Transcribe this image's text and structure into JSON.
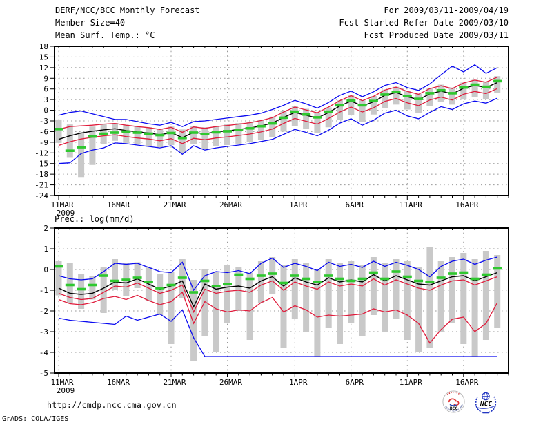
{
  "header": {
    "left": [
      "DERF/NCC/BCC Monthly Forecast",
      "Member Size=40"
    ],
    "right": [
      "For 2009/03/11-2009/04/19",
      "Fcst Started Refer Date 2009/03/10",
      "Fcst Produced Date 2009/03/11"
    ]
  },
  "footer": {
    "url": "http://cmdp.ncc.cma.gov.cn",
    "grads_credit": "GrADS: COLA/IGES",
    "logos": {
      "bcc": "BCC",
      "bcc_ring_text": "BEIJING CLIMATE CENTER",
      "ncc": "NCC"
    }
  },
  "colors": {
    "extreme_lines": "#0a0af0",
    "band_lines": "#e01c3c",
    "mean_line": "#000000",
    "obs_marks": "#2fc82f",
    "spread_bars": "#c9c9c9",
    "grid": "#999999",
    "axis": "#000000"
  },
  "chart_data": [
    {
      "id": "temp",
      "type": "line",
      "title": "Mean Surf. Temp.: °C",
      "n_days": 40,
      "x_tick_labels": [
        "11MAR",
        "16MAR",
        "21MAR",
        "26MAR",
        "1APR",
        "6APR",
        "11APR",
        "16APR"
      ],
      "x_tick_days": [
        0,
        5,
        10,
        15,
        21,
        26,
        31,
        36
      ],
      "x_sub_label": "2009",
      "y_tick_labels": [
        "18",
        "15",
        "12",
        "9",
        "6",
        "3",
        "0",
        "-3",
        "-6",
        "-9",
        "-12",
        "-15",
        "-18",
        "-21",
        "-24"
      ],
      "ylim": [
        -24,
        18
      ],
      "series": [
        {
          "name": "max",
          "color_key": "extreme_lines",
          "values": [
            -1.4,
            -0.6,
            -0.2,
            -1.0,
            -1.8,
            -2.6,
            -2.6,
            -3.2,
            -3.8,
            -4.2,
            -3.4,
            -4.6,
            -3.2,
            -3.0,
            -2.6,
            -2.2,
            -1.8,
            -1.4,
            -0.8,
            0.2,
            1.4,
            2.8,
            1.8,
            0.6,
            2.2,
            4.2,
            5.4,
            3.8,
            5.2,
            7.0,
            7.8,
            6.4,
            5.6,
            7.4,
            10.0,
            12.4,
            10.8,
            12.8,
            10.4,
            12.0
          ]
        },
        {
          "name": "upper",
          "color_key": "band_lines",
          "values": [
            -5.4,
            -4.6,
            -4.4,
            -4.2,
            -3.9,
            -3.7,
            -4.2,
            -4.6,
            -4.9,
            -5.4,
            -4.8,
            -6.2,
            -4.7,
            -5.1,
            -4.6,
            -4.3,
            -3.9,
            -3.5,
            -2.9,
            -2.1,
            -0.5,
            0.9,
            0.1,
            -0.7,
            0.9,
            2.7,
            4.1,
            2.7,
            3.9,
            5.7,
            6.5,
            5.3,
            4.5,
            6.1,
            6.9,
            6.1,
            7.7,
            8.5,
            7.9,
            9.3
          ]
        },
        {
          "name": "mean",
          "color_key": "mean_line",
          "values": [
            -8.2,
            -7.2,
            -6.4,
            -5.9,
            -5.5,
            -5.2,
            -5.7,
            -6.1,
            -6.4,
            -6.9,
            -6.3,
            -7.7,
            -6.2,
            -6.6,
            -6.1,
            -5.8,
            -5.4,
            -5.0,
            -4.4,
            -3.6,
            -2.0,
            -0.6,
            -1.4,
            -2.2,
            -0.6,
            1.2,
            2.6,
            1.2,
            2.4,
            4.2,
            5.0,
            3.8,
            3.0,
            4.6,
            5.4,
            4.6,
            6.2,
            7.0,
            6.4,
            7.8
          ]
        },
        {
          "name": "lower",
          "color_key": "band_lines",
          "values": [
            -9.9,
            -8.9,
            -8.1,
            -7.6,
            -7.2,
            -6.9,
            -7.4,
            -7.8,
            -8.1,
            -8.6,
            -8.0,
            -9.4,
            -7.9,
            -8.3,
            -7.8,
            -7.5,
            -7.1,
            -6.7,
            -6.1,
            -5.3,
            -3.7,
            -2.3,
            -3.1,
            -3.9,
            -2.3,
            -0.5,
            0.9,
            -0.5,
            0.7,
            2.5,
            3.3,
            2.1,
            1.3,
            2.9,
            3.7,
            2.9,
            4.5,
            5.3,
            4.7,
            6.1
          ]
        },
        {
          "name": "min",
          "color_key": "extreme_lines",
          "values": [
            -15.0,
            -14.8,
            -12.2,
            -11.2,
            -10.6,
            -9.2,
            -9.4,
            -9.8,
            -10.2,
            -10.6,
            -10.0,
            -12.4,
            -10.0,
            -11.2,
            -10.6,
            -10.2,
            -9.8,
            -9.4,
            -8.8,
            -8.2,
            -6.8,
            -5.4,
            -6.2,
            -7.2,
            -5.6,
            -3.6,
            -2.4,
            -4.2,
            -2.8,
            -0.8,
            0.0,
            -1.6,
            -2.4,
            -0.6,
            1.0,
            0.2,
            1.8,
            2.6,
            2.0,
            3.4
          ]
        }
      ],
      "obs_marks": [
        -5.3,
        -11.4,
        -10.4,
        -7.4,
        -6.6,
        -6.3,
        -6.0,
        -6.3,
        -6.6,
        -7.0,
        -6.4,
        -7.8,
        -6.3,
        -6.7,
        -6.2,
        -5.9,
        -5.5,
        -5.1,
        -4.5,
        -3.7,
        -2.1,
        -0.4,
        -1.2,
        -2.0,
        -0.4,
        1.4,
        2.8,
        1.4,
        2.6,
        4.4,
        5.2,
        4.0,
        3.2,
        4.8,
        5.6,
        4.8,
        6.4,
        7.2,
        6.6,
        8.2
      ],
      "spread_bar_high": [
        -2.6,
        -4.0,
        -6.2,
        -4.6,
        -4.0,
        -3.6,
        -4.1,
        -4.5,
        -4.8,
        -5.2,
        -4.6,
        -5.4,
        -4.4,
        -4.8,
        -4.4,
        -4.0,
        -3.6,
        -3.2,
        -2.6,
        -1.8,
        -0.2,
        1.2,
        0.4,
        -0.6,
        0.8,
        2.8,
        4.2,
        2.8,
        4.0,
        5.8,
        6.6,
        5.4,
        4.6,
        6.2,
        7.2,
        6.4,
        7.8,
        8.6,
        8.0,
        9.6
      ],
      "spread_bar_low": [
        -9.2,
        -13.2,
        -18.8,
        -15.4,
        -9.6,
        -8.6,
        -9.2,
        -9.6,
        -10.0,
        -10.4,
        -9.8,
        -12.0,
        -9.6,
        -10.8,
        -10.2,
        -9.8,
        -9.4,
        -9.0,
        -8.4,
        -7.6,
        -6.0,
        -4.4,
        -5.2,
        -6.4,
        -4.8,
        -2.8,
        -1.4,
        -3.2,
        -1.2,
        0.6,
        1.6,
        0.2,
        -0.8,
        1.2,
        2.4,
        1.6,
        3.0,
        3.8,
        3.2,
        4.8
      ]
    },
    {
      "id": "prec",
      "type": "line",
      "title": "Prec.: log(mm/d)",
      "n_days": 40,
      "x_tick_labels": [
        "11MAR",
        "16MAR",
        "21MAR",
        "26MAR",
        "1APR",
        "6APR",
        "11APR",
        "16APR"
      ],
      "x_tick_days": [
        0,
        5,
        10,
        15,
        21,
        26,
        31,
        36
      ],
      "x_sub_label": "2009",
      "y_tick_labels": [
        "2",
        "1",
        "0",
        "-1",
        "-2",
        "-3",
        "-4",
        "-5"
      ],
      "ylim": [
        -5,
        2
      ],
      "series": [
        {
          "name": "max",
          "color_key": "extreme_lines",
          "values": [
            -0.3,
            -0.45,
            -0.5,
            -0.45,
            -0.1,
            0.3,
            0.25,
            0.3,
            0.1,
            -0.1,
            -0.15,
            0.35,
            -1.0,
            -0.3,
            -0.1,
            -0.15,
            -0.05,
            -0.2,
            0.3,
            0.55,
            0.1,
            0.3,
            0.15,
            -0.05,
            0.35,
            0.15,
            0.25,
            0.1,
            0.4,
            0.15,
            0.35,
            0.2,
            0.0,
            -0.35,
            0.15,
            0.4,
            0.5,
            0.25,
            0.45,
            0.6
          ]
        },
        {
          "name": "upper",
          "color_key": "band_lines",
          "values": [
            -1.15,
            -1.35,
            -1.45,
            -1.4,
            -1.1,
            -0.8,
            -0.85,
            -0.65,
            -0.9,
            -1.15,
            -1.0,
            -0.75,
            -2.05,
            -0.95,
            -1.15,
            -1.05,
            -1.0,
            -1.1,
            -0.75,
            -0.55,
            -1.0,
            -0.6,
            -0.8,
            -0.95,
            -0.6,
            -0.8,
            -0.7,
            -0.8,
            -0.45,
            -0.75,
            -0.5,
            -0.7,
            -0.9,
            -1.0,
            -0.75,
            -0.55,
            -0.5,
            -0.75,
            -0.55,
            -0.35
          ]
        },
        {
          "name": "mean",
          "color_key": "mean_line",
          "values": [
            -0.9,
            -1.15,
            -1.2,
            -1.15,
            -0.9,
            -0.6,
            -0.65,
            -0.45,
            -0.7,
            -0.95,
            -0.8,
            -0.55,
            -1.8,
            -0.7,
            -0.95,
            -0.85,
            -0.8,
            -0.9,
            -0.55,
            -0.35,
            -0.8,
            -0.4,
            -0.6,
            -0.75,
            -0.4,
            -0.6,
            -0.5,
            -0.6,
            -0.25,
            -0.55,
            -0.3,
            -0.5,
            -0.7,
            -0.75,
            -0.55,
            -0.35,
            -0.3,
            -0.55,
            -0.35,
            -0.15
          ]
        },
        {
          "name": "lower",
          "color_key": "band_lines",
          "values": [
            -1.45,
            -1.65,
            -1.7,
            -1.6,
            -1.4,
            -1.3,
            -1.45,
            -1.25,
            -1.5,
            -1.7,
            -1.55,
            -1.1,
            -2.6,
            -1.55,
            -1.9,
            -2.05,
            -1.95,
            -2.0,
            -1.6,
            -1.35,
            -2.05,
            -1.75,
            -1.95,
            -2.3,
            -2.2,
            -2.25,
            -2.2,
            -2.15,
            -1.9,
            -2.05,
            -1.95,
            -2.2,
            -2.6,
            -3.55,
            -2.9,
            -2.4,
            -2.3,
            -3.0,
            -2.6,
            -1.6
          ]
        },
        {
          "name": "min",
          "color_key": "extreme_lines",
          "values": [
            -2.35,
            -2.45,
            -2.5,
            -2.55,
            -2.6,
            -2.65,
            -2.25,
            -2.45,
            -2.3,
            -2.15,
            -2.5,
            -1.95,
            -3.3,
            -4.2,
            -4.2,
            -4.2,
            -4.2,
            -4.2,
            -4.2,
            -4.2,
            -4.2,
            -4.2,
            -4.2,
            -4.2,
            -4.2,
            -4.2,
            -4.2,
            -4.2,
            -4.2,
            -4.2,
            -4.2,
            -4.2,
            -4.2,
            -4.2,
            -4.2,
            -4.2,
            -4.2,
            -4.2,
            -4.2,
            -4.2
          ]
        }
      ],
      "obs_marks": [
        0.15,
        -0.75,
        -0.95,
        -0.75,
        -0.3,
        -0.55,
        -0.5,
        -0.4,
        -0.6,
        -0.9,
        -0.75,
        -0.4,
        -1.1,
        -0.55,
        -0.8,
        -0.7,
        -0.25,
        -0.45,
        -0.3,
        -0.2,
        -0.65,
        -0.3,
        -0.45,
        -0.6,
        -0.3,
        -0.45,
        -0.55,
        -0.45,
        -0.15,
        -0.45,
        -0.1,
        -0.35,
        -0.55,
        -0.6,
        -0.4,
        -0.2,
        -0.15,
        -0.45,
        -0.25,
        0.05
      ],
      "spread_bar_high": [
        0.4,
        0.3,
        -0.2,
        -0.3,
        0.1,
        0.5,
        0.3,
        0.35,
        0.1,
        -0.2,
        -0.1,
        0.5,
        -0.5,
        0.0,
        -0.1,
        0.2,
        0.1,
        -0.15,
        0.4,
        0.6,
        0.2,
        0.5,
        0.3,
        0.0,
        0.5,
        0.3,
        0.4,
        0.2,
        0.6,
        0.3,
        0.5,
        0.4,
        0.1,
        1.1,
        0.4,
        0.6,
        0.8,
        0.5,
        0.9,
        0.7
      ],
      "spread_bar_low": [
        -1.25,
        -1.6,
        -1.9,
        -1.45,
        -2.1,
        -1.0,
        -1.3,
        -0.9,
        -1.5,
        -2.2,
        -3.6,
        -1.4,
        -4.4,
        -3.2,
        -4.0,
        -2.6,
        -2.0,
        -3.4,
        -1.6,
        -1.2,
        -3.8,
        -2.4,
        -3.0,
        -4.2,
        -2.8,
        -3.6,
        -2.6,
        -3.2,
        -2.2,
        -3.0,
        -2.4,
        -3.4,
        -4.0,
        -3.8,
        -3.0,
        -2.6,
        -3.6,
        -4.2,
        -3.4,
        -2.8
      ]
    }
  ]
}
